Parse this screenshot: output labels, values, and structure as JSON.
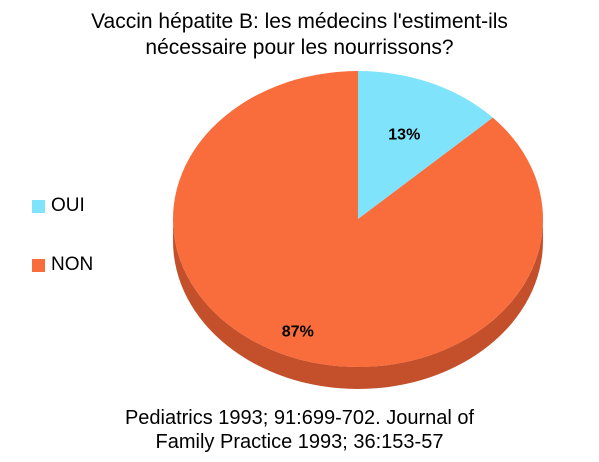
{
  "title_lines": [
    "Vaccin hépatite B: les médecins l'estiment-ils",
    "nécessaire pour les nourrissons?"
  ],
  "source_lines": [
    "Pediatrics 1993; 91:699-702. Journal of",
    "Family Practice 1993; 36:153-57"
  ],
  "chart_data": {
    "type": "pie",
    "style": "3d",
    "title": "Vaccin hépatite B: les médecins l'estiment-ils nécessaire pour les nourrissons?",
    "categories": [
      "OUI",
      "NON"
    ],
    "values": [
      13,
      87
    ],
    "labels": [
      "13%",
      "87%"
    ],
    "colors": [
      "#7fe4fb",
      "#f96c3b"
    ],
    "side_colors": [
      "#4fb9d0",
      "#c4502b"
    ],
    "legend_position": "left"
  }
}
